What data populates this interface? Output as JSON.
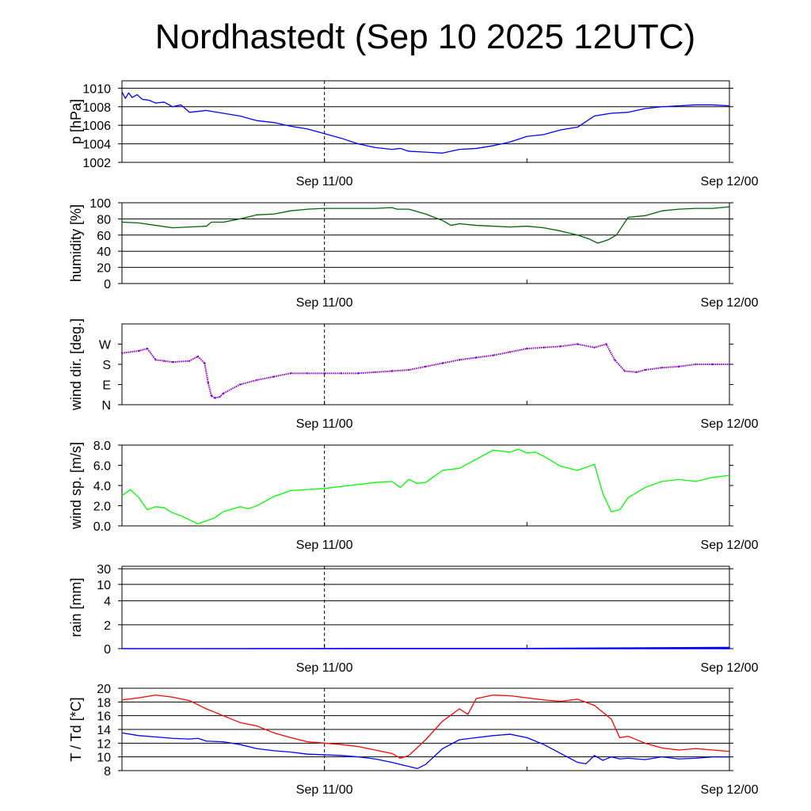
{
  "page": {
    "title": "Nordhastedt (Sep 10 2025 12UTC)",
    "background": "#ffffff"
  },
  "time_axis": {
    "start_hours": 0,
    "end_hours": 36,
    "tick_labels": [
      {
        "hours": 12,
        "label": "Sep 11/00"
      },
      {
        "hours": 36,
        "label": "Sep 12/00"
      }
    ],
    "minor_tick_hours": [
      12,
      24
    ],
    "dashed_line_hours": 12
  },
  "chart_data": [
    {
      "id": "pressure",
      "type": "line",
      "ylabel": "p [hPa]",
      "ylim": [
        1002,
        1010.8
      ],
      "y_tick_labels": [
        {
          "value": 1002,
          "label": "1002"
        },
        {
          "value": 1004,
          "label": "1004"
        },
        {
          "value": 1006,
          "label": "1006"
        },
        {
          "value": 1008,
          "label": "1008"
        },
        {
          "value": 1010,
          "label": "1010"
        }
      ],
      "grid": true,
      "series": [
        {
          "color": "#0000ff",
          "x": [
            0,
            0.2,
            0.4,
            0.6,
            0.9,
            1.2,
            1.6,
            2.0,
            2.5,
            3.0,
            3.5,
            4.0,
            5.0,
            6.0,
            7.0,
            8.0,
            9.0,
            10.0,
            11.0,
            12.0,
            13.0,
            14.0,
            15.0,
            16.0,
            16.5,
            17.0,
            18.0,
            19.0,
            20.0,
            21.0,
            22.0,
            23.0,
            24.0,
            25.0,
            26.0,
            27.0,
            28.0,
            29.0,
            30.0,
            31.0,
            32.0,
            33.0,
            34.0,
            35.0,
            36.0
          ],
          "y": [
            1009.6,
            1008.9,
            1009.5,
            1009.0,
            1009.3,
            1008.8,
            1008.7,
            1008.4,
            1008.5,
            1008.0,
            1008.2,
            1007.4,
            1007.6,
            1007.3,
            1007.0,
            1006.5,
            1006.3,
            1005.9,
            1005.6,
            1005.1,
            1004.6,
            1004.0,
            1003.6,
            1003.4,
            1003.5,
            1003.2,
            1003.1,
            1003.0,
            1003.4,
            1003.5,
            1003.8,
            1004.2,
            1004.8,
            1005.0,
            1005.5,
            1005.8,
            1007.0,
            1007.3,
            1007.4,
            1007.8,
            1008.0,
            1008.1,
            1008.2,
            1008.2,
            1008.1
          ]
        }
      ]
    },
    {
      "id": "humidity",
      "type": "line",
      "ylabel": "humidity [%]",
      "ylim": [
        0,
        100
      ],
      "y_tick_labels": [
        {
          "value": 0,
          "label": "0"
        },
        {
          "value": 20,
          "label": "20"
        },
        {
          "value": 40,
          "label": "40"
        },
        {
          "value": 60,
          "label": "60"
        },
        {
          "value": 80,
          "label": "80"
        },
        {
          "value": 100,
          "label": "100"
        }
      ],
      "grid": true,
      "series": [
        {
          "color": "#006400",
          "x": [
            0,
            1,
            2,
            3,
            4,
            5,
            5.3,
            6,
            6.5,
            7,
            8,
            9,
            10,
            11,
            12,
            13,
            14,
            15,
            16,
            16.3,
            17,
            18,
            19,
            19.5,
            20,
            21,
            22,
            23,
            24,
            25,
            26,
            27,
            27.7,
            28.2,
            28.8,
            29.3,
            30,
            31,
            32,
            33,
            34,
            35,
            36
          ],
          "y": [
            76,
            75,
            72,
            69,
            70,
            71,
            76,
            76,
            78,
            80,
            85,
            86,
            90,
            92,
            93,
            93,
            93,
            93,
            94,
            92,
            92,
            86,
            78,
            72,
            74,
            72,
            71,
            70,
            71,
            69,
            65,
            60,
            55,
            50,
            54,
            60,
            82,
            84,
            90,
            92,
            93,
            93,
            95
          ]
        }
      ]
    },
    {
      "id": "wind_direction",
      "type": "scatter",
      "ylabel": "wind dir. [deg.]",
      "ylim": [
        0,
        360
      ],
      "y_tick_labels": [
        {
          "value": 0,
          "label": "N"
        },
        {
          "value": 90,
          "label": "E"
        },
        {
          "value": 180,
          "label": "S"
        },
        {
          "value": 270,
          "label": "W"
        }
      ],
      "grid": false,
      "series": [
        {
          "color": "#9400d3",
          "x": [
            0,
            1,
            1.5,
            2,
            2.5,
            3,
            4,
            4.5,
            4.9,
            5.1,
            5.3,
            5.5,
            5.8,
            6,
            7,
            8,
            9,
            10,
            11,
            12,
            13,
            14,
            15,
            16,
            17,
            18,
            19,
            20,
            21,
            22,
            23,
            24,
            25,
            26,
            27,
            28,
            28.7,
            29.2,
            29.8,
            30.5,
            31,
            32,
            33,
            34,
            35,
            36
          ],
          "y": [
            230,
            240,
            250,
            200,
            195,
            190,
            195,
            215,
            185,
            100,
            40,
            30,
            35,
            50,
            90,
            110,
            125,
            140,
            140,
            140,
            140,
            140,
            145,
            150,
            155,
            170,
            185,
            200,
            210,
            220,
            235,
            250,
            255,
            260,
            270,
            255,
            270,
            200,
            150,
            145,
            155,
            165,
            170,
            180,
            180,
            180
          ]
        }
      ]
    },
    {
      "id": "wind_speed",
      "type": "line",
      "ylabel": "wind sp. [m/s]",
      "ylim": [
        0,
        8
      ],
      "y_tick_labels": [
        {
          "value": 0,
          "label": "0.0"
        },
        {
          "value": 2,
          "label": "2.0"
        },
        {
          "value": 4,
          "label": "4.0"
        },
        {
          "value": 6,
          "label": "6.0"
        },
        {
          "value": 8,
          "label": "8.0"
        }
      ],
      "grid": false,
      "series": [
        {
          "color": "#00ff00",
          "x": [
            0,
            0.5,
            1,
            1.5,
            2,
            2.5,
            3,
            3.5,
            4,
            4.5,
            5,
            5.5,
            6,
            7,
            7.5,
            8,
            9,
            10,
            11,
            12,
            13,
            14,
            15,
            16,
            16.5,
            17,
            17.5,
            18,
            19,
            20,
            21,
            22,
            23,
            23.5,
            24,
            24.5,
            25,
            26,
            27,
            28,
            28.5,
            29,
            29.5,
            30,
            31,
            32,
            33,
            34,
            35,
            36
          ],
          "y": [
            3.0,
            3.6,
            2.8,
            1.6,
            1.9,
            1.8,
            1.3,
            1.0,
            0.6,
            0.2,
            0.5,
            0.8,
            1.4,
            1.9,
            1.7,
            2.0,
            2.9,
            3.5,
            3.6,
            3.7,
            3.9,
            4.1,
            4.3,
            4.4,
            3.8,
            4.6,
            4.2,
            4.3,
            5.5,
            5.7,
            6.6,
            7.5,
            7.3,
            7.6,
            7.2,
            7.3,
            6.9,
            5.9,
            5.5,
            6.1,
            3.2,
            1.4,
            1.6,
            2.8,
            3.8,
            4.4,
            4.6,
            4.4,
            4.8,
            5.0
          ]
        }
      ]
    },
    {
      "id": "rain",
      "type": "area",
      "ylabel": "rain [mm]",
      "ylim": [
        0,
        30
      ],
      "y_scale": "nonlinear",
      "y_tick_labels": [
        {
          "value": 0,
          "label": "0"
        },
        {
          "value": 2,
          "label": "2"
        },
        {
          "value": 4,
          "label": "4"
        },
        {
          "value": 10,
          "label": "10"
        },
        {
          "value": 30,
          "label": "30"
        }
      ],
      "grid": true,
      "series": [
        {
          "color": "#0000ff",
          "x": [
            0,
            24,
            30,
            36
          ],
          "y": [
            0,
            0.02,
            0.06,
            0.1
          ]
        }
      ]
    },
    {
      "id": "temperature",
      "type": "line",
      "ylabel": "T / Td [*C]",
      "ylim": [
        8,
        20
      ],
      "y_tick_labels": [
        {
          "value": 8,
          "label": "8"
        },
        {
          "value": 10,
          "label": "10"
        },
        {
          "value": 12,
          "label": "12"
        },
        {
          "value": 14,
          "label": "14"
        },
        {
          "value": 16,
          "label": "16"
        },
        {
          "value": 18,
          "label": "18"
        },
        {
          "value": 20,
          "label": "20"
        }
      ],
      "grid": true,
      "series": [
        {
          "color": "#ff0000",
          "x": [
            0,
            1,
            2,
            3,
            4,
            5,
            6,
            7,
            8,
            9,
            10,
            11,
            12,
            13,
            14,
            15,
            16,
            16.5,
            17,
            18,
            19,
            20,
            20.5,
            21,
            22,
            23,
            24,
            25,
            26,
            27,
            28,
            29,
            29.5,
            30,
            31,
            32,
            33,
            34,
            35,
            36
          ],
          "y": [
            18.3,
            18.6,
            19.0,
            18.7,
            18.2,
            17.0,
            16.0,
            15.0,
            14.5,
            13.5,
            12.8,
            12.2,
            12.0,
            11.8,
            11.5,
            11.0,
            10.5,
            9.8,
            10.2,
            12.5,
            15.2,
            17.0,
            16.2,
            18.5,
            19.0,
            18.9,
            18.6,
            18.3,
            18.1,
            18.4,
            17.5,
            15.5,
            12.8,
            13.0,
            12.0,
            11.3,
            11.0,
            11.2,
            11.0,
            10.8
          ]
        },
        {
          "color": "#0000ff",
          "x": [
            0,
            1,
            2,
            3,
            4,
            4.5,
            5,
            6,
            7,
            8,
            9,
            10,
            11,
            12,
            13,
            14,
            15,
            16,
            17,
            17.5,
            18,
            19,
            20,
            21,
            22,
            23,
            24,
            25,
            26,
            27,
            27.5,
            28,
            28.5,
            29,
            29.5,
            30,
            31,
            32,
            33,
            34,
            35,
            36
          ],
          "y": [
            13.5,
            13.1,
            12.9,
            12.7,
            12.6,
            12.7,
            12.3,
            12.2,
            11.8,
            11.2,
            10.9,
            10.7,
            10.4,
            10.3,
            10.2,
            10.0,
            9.7,
            9.2,
            8.6,
            8.3,
            8.9,
            11.2,
            12.5,
            12.8,
            13.1,
            13.3,
            12.8,
            11.8,
            10.5,
            9.2,
            9.0,
            10.2,
            9.5,
            10.0,
            9.7,
            9.8,
            9.6,
            10.0,
            9.7,
            9.8,
            10.0,
            10.0
          ]
        }
      ]
    }
  ]
}
